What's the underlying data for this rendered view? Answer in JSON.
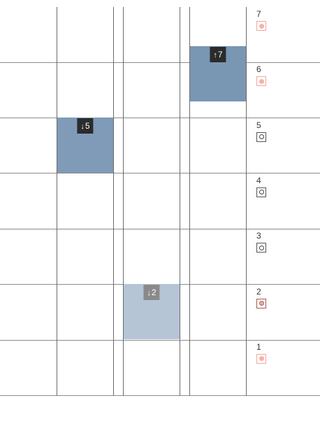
{
  "floors": [
    {
      "label": "7",
      "button": "active"
    },
    {
      "label": "6",
      "button": "active"
    },
    {
      "label": "5",
      "button": "idle"
    },
    {
      "label": "4",
      "button": "idle"
    },
    {
      "label": "3",
      "button": "idle"
    },
    {
      "label": "2",
      "button": "pressed"
    },
    {
      "label": "1",
      "button": "active"
    }
  ],
  "elevators": [
    {
      "shaft": 1,
      "floor": 5,
      "direction_icon": "arrow-down-icon",
      "arrow": "↓",
      "target": "5",
      "color": "#7f9bb8",
      "badge_color": "#2b2b2b"
    },
    {
      "shaft": 2,
      "floor": 2,
      "direction_icon": "arrow-down-icon",
      "arrow": "↓",
      "target": "2",
      "color": "#b5c5d6",
      "badge_color": "#8a8a8a"
    },
    {
      "shaft": 3,
      "floor": 7,
      "direction_icon": "arrow-up-icon",
      "arrow": "↑",
      "target": "7",
      "color": "#7996b3",
      "badge_color": "#2b2b2b"
    }
  ]
}
